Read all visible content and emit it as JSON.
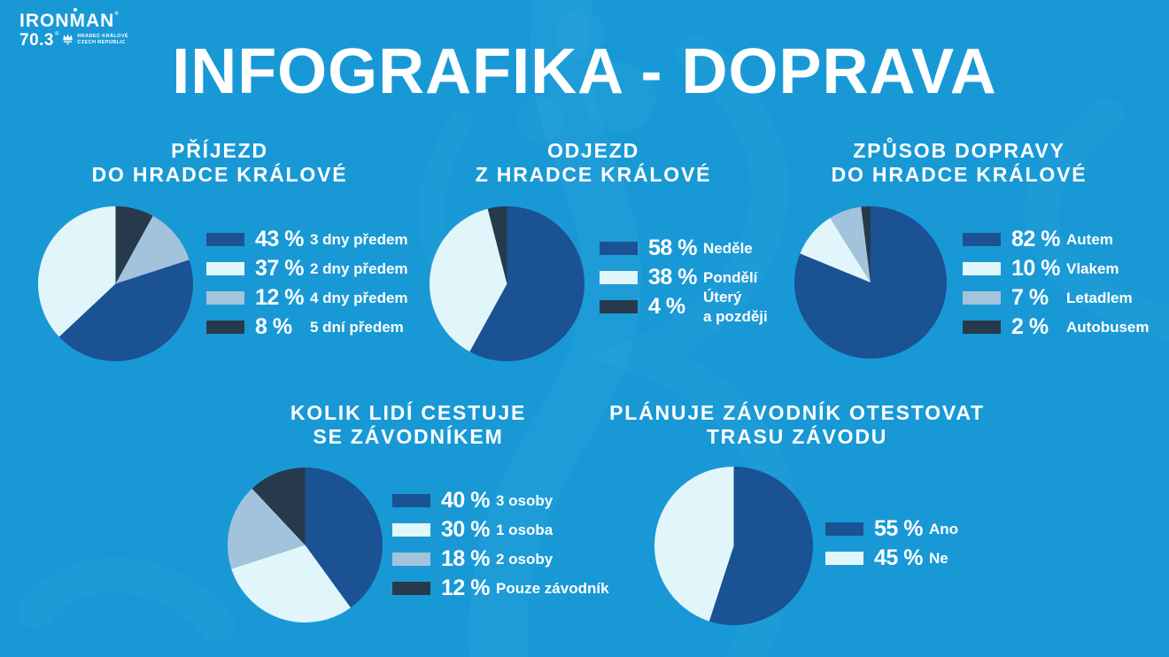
{
  "page": {
    "title": "INFOGRAFIKA - DOPRAVA",
    "background_color": "#1899D6",
    "watermark_color": "#38A9DF",
    "text_color": "#FFFFFF"
  },
  "logo": {
    "brand": "IRONMAN",
    "series": "70.3",
    "registered": "®",
    "location": "HRADEC KRÁLOVÉ\nCZECH REPUBLIC"
  },
  "palette": {
    "dark_blue": "#1B5294",
    "light_blue": "#E1F6FA",
    "gray_blue": "#A3C3DC",
    "navy": "#273A4B"
  },
  "chart_data": [
    {
      "type": "pie",
      "title": "PŘÍJEZD\nDO HRADCE KRÁLOVÉ",
      "legend_position": "right",
      "slices": [
        {
          "label": "3 dny předem",
          "pct": "43 %",
          "value": 43,
          "color": "#1B5294"
        },
        {
          "label": "2 dny předem",
          "pct": "37 %",
          "value": 37,
          "color": "#E1F6FA"
        },
        {
          "label": "4 dny předem",
          "pct": "12 %",
          "value": 12,
          "color": "#A3C3DC"
        },
        {
          "label": "5 dní předem",
          "pct": "8 %",
          "value": 8,
          "color": "#273A4B"
        }
      ],
      "draw_order": [
        3,
        2,
        0,
        1
      ],
      "start_angle_deg": 0
    },
    {
      "type": "pie",
      "title": "ODJEZD\nZ HRADCE KRÁLOVÉ",
      "legend_position": "right",
      "slices": [
        {
          "label": "Neděle",
          "pct": "58 %",
          "value": 58,
          "color": "#1B5294"
        },
        {
          "label": "Pondělí",
          "pct": "38 %",
          "value": 38,
          "color": "#E1F6FA"
        },
        {
          "label": "Úterý\na později",
          "pct": "4 %",
          "value": 4,
          "color": "#273A4B"
        }
      ],
      "draw_order": [
        0,
        1,
        2
      ],
      "start_angle_deg": 0
    },
    {
      "type": "pie",
      "title": "ZPŮSOB DOPRAVY\nDO HRADCE KRÁLOVÉ",
      "legend_position": "right",
      "slices": [
        {
          "label": "Autem",
          "pct": "82 %",
          "value": 82,
          "color": "#1B5294"
        },
        {
          "label": "Vlakem",
          "pct": "10 %",
          "value": 10,
          "color": "#E1F6FA"
        },
        {
          "label": "Letadlem",
          "pct": "7 %",
          "value": 7,
          "color": "#A3C3DC"
        },
        {
          "label": "Autobusem",
          "pct": "2 %",
          "value": 2,
          "color": "#273A4B"
        }
      ],
      "draw_order": [
        0,
        1,
        2,
        3
      ],
      "start_angle_deg": 0
    },
    {
      "type": "pie",
      "title": "KOLIK LIDÍ CESTUJE\nSE ZÁVODNÍKEM",
      "legend_position": "right",
      "slices": [
        {
          "label": "3 osoby",
          "pct": "40 %",
          "value": 40,
          "color": "#1B5294"
        },
        {
          "label": "1 osoba",
          "pct": "30 %",
          "value": 30,
          "color": "#E1F6FA"
        },
        {
          "label": "2 osoby",
          "pct": "18 %",
          "value": 18,
          "color": "#A3C3DC"
        },
        {
          "label": "Pouze závodník",
          "pct": "12 %",
          "value": 12,
          "color": "#273A4B"
        }
      ],
      "draw_order": [
        0,
        1,
        2,
        3
      ],
      "start_angle_deg": 0
    },
    {
      "type": "pie",
      "title": "PLÁNUJE ZÁVODNÍK OTESTOVAT\nTRASU ZÁVODU",
      "legend_position": "right",
      "slices": [
        {
          "label": "Ano",
          "pct": "55 %",
          "value": 55,
          "color": "#1B5294"
        },
        {
          "label": "Ne",
          "pct": "45 %",
          "value": 45,
          "color": "#E1F6FA"
        }
      ],
      "draw_order": [
        0,
        1
      ],
      "start_angle_deg": 0
    }
  ]
}
